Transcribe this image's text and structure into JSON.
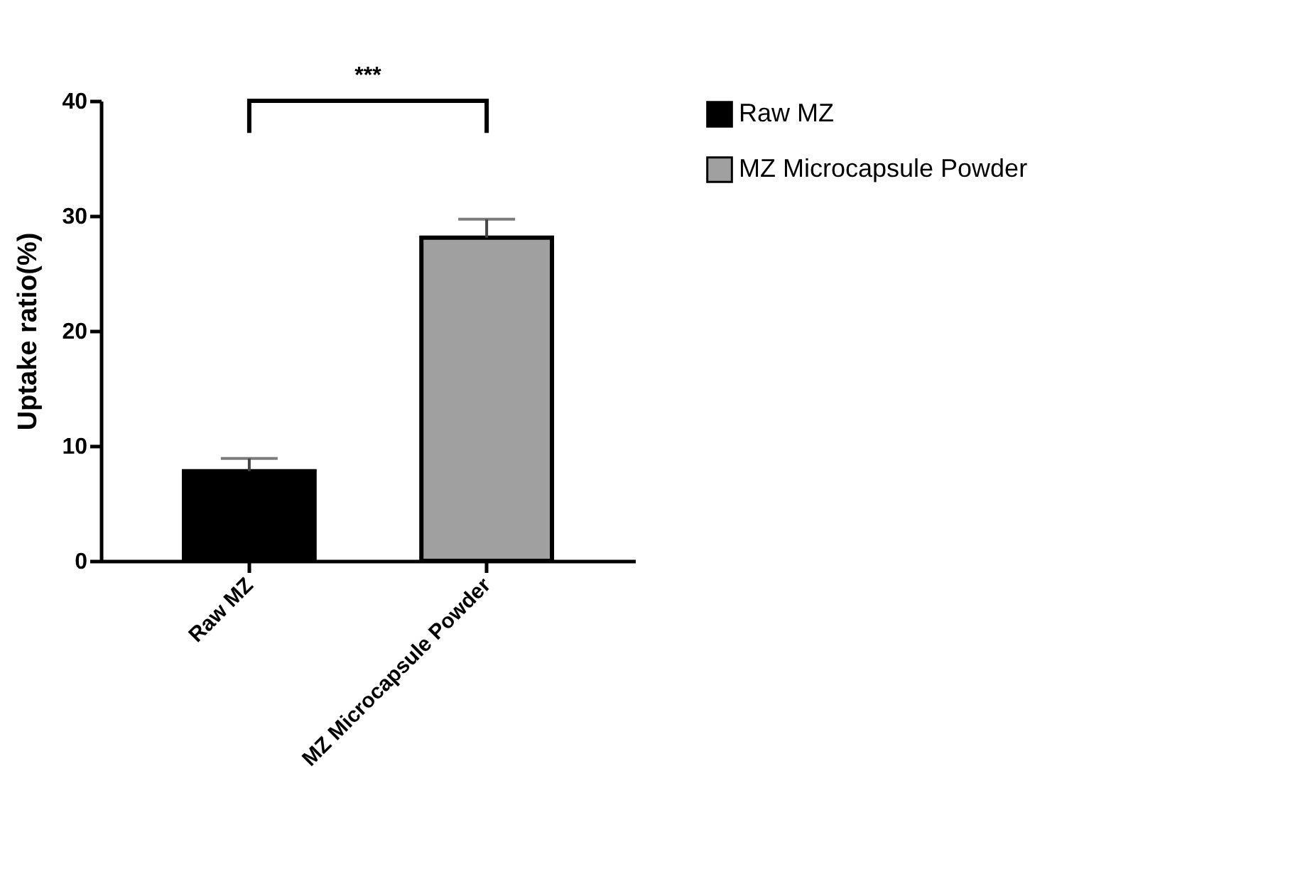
{
  "chart_data": {
    "type": "bar",
    "ylabel": "Uptake ratio(%)",
    "categories": [
      "Raw MZ",
      "MZ Microcapsule Powder"
    ],
    "series": [
      {
        "name": "Raw MZ",
        "color": "#000000",
        "values": [
          7.8,
          null
        ],
        "errors": [
          1.1,
          null
        ]
      },
      {
        "name": "MZ Microcapsule Powder",
        "color": "#a0a0a0",
        "values": [
          null,
          28.1
        ],
        "errors": [
          null,
          1.6
        ]
      }
    ],
    "ylim": [
      0,
      40
    ],
    "yticks": [
      0,
      10,
      20,
      30,
      40
    ],
    "annotations": [
      "***"
    ],
    "legend": "top right",
    "grid": false
  }
}
